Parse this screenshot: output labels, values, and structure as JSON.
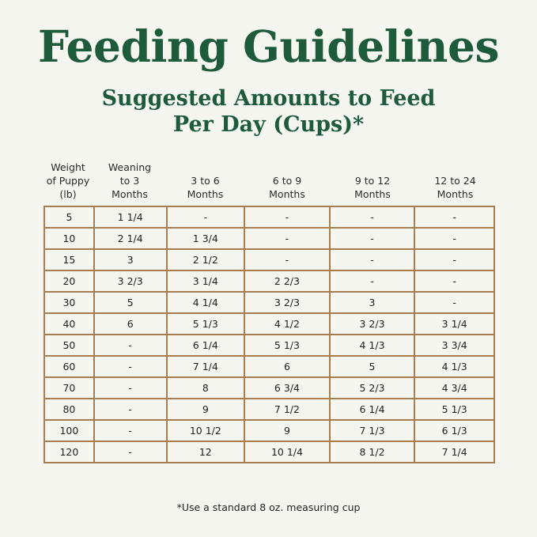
{
  "title": "Feeding Guidelines",
  "subtitle_line1": "Suggested Amounts to Feed",
  "subtitle_line2": "Per Day (Cups)*",
  "colors": {
    "heading": "#1d5b3a",
    "border": "#a97d52",
    "background": "#f6f6f1"
  },
  "table": {
    "headers": [
      "Weight\nof Puppy\n(lb)",
      "Weaning\nto 3\nMonths",
      "3 to 6\nMonths",
      "6 to 9\nMonths",
      "9 to 12\nMonths",
      "12 to 24\nMonths"
    ],
    "rows": [
      [
        "5",
        "1 1/4",
        "-",
        "-",
        "-",
        "-"
      ],
      [
        "10",
        "2 1/4",
        "1 3/4",
        "-",
        "-",
        "-"
      ],
      [
        "15",
        "3",
        "2 1/2",
        "-",
        "-",
        "-"
      ],
      [
        "20",
        "3 2/3",
        "3 1/4",
        "2 2/3",
        "-",
        "-"
      ],
      [
        "30",
        "5",
        "4 1/4",
        "3 2/3",
        "3",
        "-"
      ],
      [
        "40",
        "6",
        "5 1/3",
        "4 1/2",
        "3 2/3",
        "3 1/4"
      ],
      [
        "50",
        "-",
        "6 1/4",
        "5 1/3",
        "4 1/3",
        "3 3/4"
      ],
      [
        "60",
        "-",
        "7 1/4",
        "6",
        "5",
        "4 1/3"
      ],
      [
        "70",
        "-",
        "8",
        "6 3/4",
        "5 2/3",
        "4 3/4"
      ],
      [
        "80",
        "-",
        "9",
        "7 1/2",
        "6 1/4",
        "5 1/3"
      ],
      [
        "100",
        "-",
        "10 1/2",
        "9",
        "7 1/3",
        "6 1/3"
      ],
      [
        "120",
        "-",
        "12",
        "10 1/4",
        "8 1/2",
        "7 1/4"
      ]
    ]
  },
  "footnote": "*Use a standard 8 oz. measuring cup"
}
